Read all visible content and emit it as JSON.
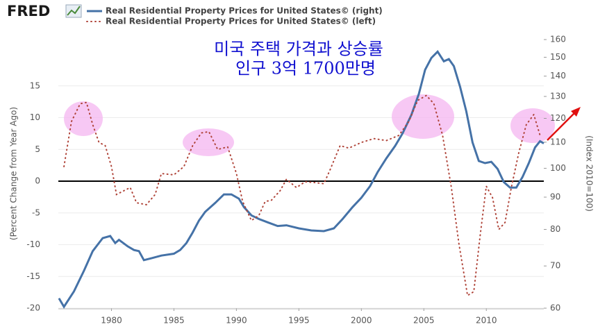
{
  "logo": "FRED",
  "chart_data": {
    "type": "line",
    "annotations": [
      "미국 주택 가격과 상승률",
      "인구 3억 1700만명"
    ],
    "ylabel": "(Percent Change from Year Ago)",
    "y2label": "(Index 2010=100)",
    "xlim": [
      1975.75,
      2014.6
    ],
    "xticks": [
      1980,
      1985,
      1990,
      1995,
      2000,
      2005,
      2010
    ],
    "ylim": [
      -20,
      22.3
    ],
    "yticks": [
      -20,
      -15,
      -10,
      -5,
      0,
      5,
      10,
      15
    ],
    "y2lim": [
      60,
      160
    ],
    "y2ticks": [
      60,
      70,
      80,
      90,
      100,
      110,
      120,
      130,
      140,
      150,
      160
    ],
    "y2log": true,
    "grid": true,
    "series": [
      {
        "name": "Real Residential Property Prices for United States© (right)",
        "color": "#4572a7",
        "style": "solid",
        "axis": "y2",
        "x": [
          1975.8,
          1976.2,
          1977,
          1977.8,
          1978.5,
          1979.3,
          1979.9,
          1980.3,
          1980.6,
          1981.3,
          1981.8,
          1982.2,
          1982.6,
          1983.2,
          1984,
          1985,
          1985.5,
          1986,
          1986.5,
          1987,
          1987.5,
          1988.3,
          1989,
          1989.6,
          1990.2,
          1990.6,
          1991.2,
          1991.8,
          1992.5,
          1993.3,
          1994,
          1995,
          1996,
          1997,
          1997.8,
          1998.5,
          1999.3,
          2000,
          2000.7,
          2001.3,
          2002,
          2002.7,
          2003.3,
          2004,
          2004.6,
          2005.1,
          2005.6,
          2006.1,
          2006.6,
          2007,
          2007.4,
          2007.9,
          2008.4,
          2008.9,
          2009.4,
          2009.9,
          2010.4,
          2010.9,
          2011.4,
          2011.9,
          2012.4,
          2012.9,
          2013.4,
          2013.9,
          2014.3,
          2014.6
        ],
        "values": [
          62.2,
          60.3,
          63.8,
          68.8,
          73.9,
          77.5,
          78.1,
          76.1,
          77,
          75.2,
          74.2,
          73.9,
          71.5,
          72,
          72.7,
          73.2,
          74.2,
          76.1,
          79.1,
          82.6,
          85.3,
          88.1,
          90.9,
          90.9,
          89.5,
          86.8,
          84.2,
          83.1,
          82.1,
          81,
          81.2,
          80.3,
          79.7,
          79.5,
          80.3,
          83.1,
          86.8,
          89.8,
          93.7,
          98.6,
          103.7,
          108.5,
          113.6,
          121.5,
          131.2,
          143.3,
          149.6,
          153.1,
          147.8,
          149,
          145.2,
          134.6,
          123.1,
          109.9,
          102.7,
          101.9,
          102.4,
          99.8,
          95.1,
          93.2,
          93.2,
          96.9,
          101.9,
          107.9,
          110.4,
          109.5
        ]
      },
      {
        "name": "Real Residential Property Prices for United States© (left)",
        "color": "#b0453a",
        "style": "dotted",
        "x": [
          1976.2,
          1976.8,
          1977.5,
          1978,
          1978.5,
          1979,
          1979.5,
          1980,
          1980.4,
          1981,
          1981.5,
          1982,
          1982.8,
          1983.5,
          1984,
          1985,
          1985.8,
          1986.5,
          1987.2,
          1987.8,
          1988.5,
          1989.3,
          1990,
          1990.5,
          1991.2,
          1991.8,
          1992.3,
          1992.8,
          1993.5,
          1994,
          1994.8,
          1995.5,
          1996.2,
          1997,
          1997.5,
          1998.3,
          1999,
          2000,
          2001,
          2002,
          2003,
          2003.8,
          2004.5,
          2005.2,
          2005.8,
          2006.5,
          2007.2,
          2007.8,
          2008.5,
          2009,
          2009.5,
          2010,
          2010.5,
          2011,
          2011.5,
          2012,
          2012.6,
          2013.2,
          2013.8,
          2014.3
        ],
        "values": [
          2.3,
          9.4,
          12.2,
          12.4,
          8.9,
          6.1,
          5.6,
          2.3,
          -2.1,
          -1.5,
          -1,
          -3.4,
          -3.7,
          -2.1,
          1.2,
          1,
          2.3,
          5.6,
          7.6,
          7.8,
          5,
          5.4,
          1.2,
          -3.2,
          -6.2,
          -5.4,
          -3.2,
          -3,
          -1.5,
          0.3,
          -1,
          -0.1,
          -0.2,
          -0.4,
          1.8,
          5.6,
          5.2,
          6.1,
          6.7,
          6.4,
          7.2,
          9.4,
          12.7,
          13.5,
          12.2,
          7.2,
          -1,
          -9.8,
          -18,
          -17.4,
          -8.7,
          -0.8,
          -2.6,
          -7.6,
          -6.5,
          -1,
          4.5,
          8.9,
          10.5,
          7.2
        ]
      }
    ]
  }
}
